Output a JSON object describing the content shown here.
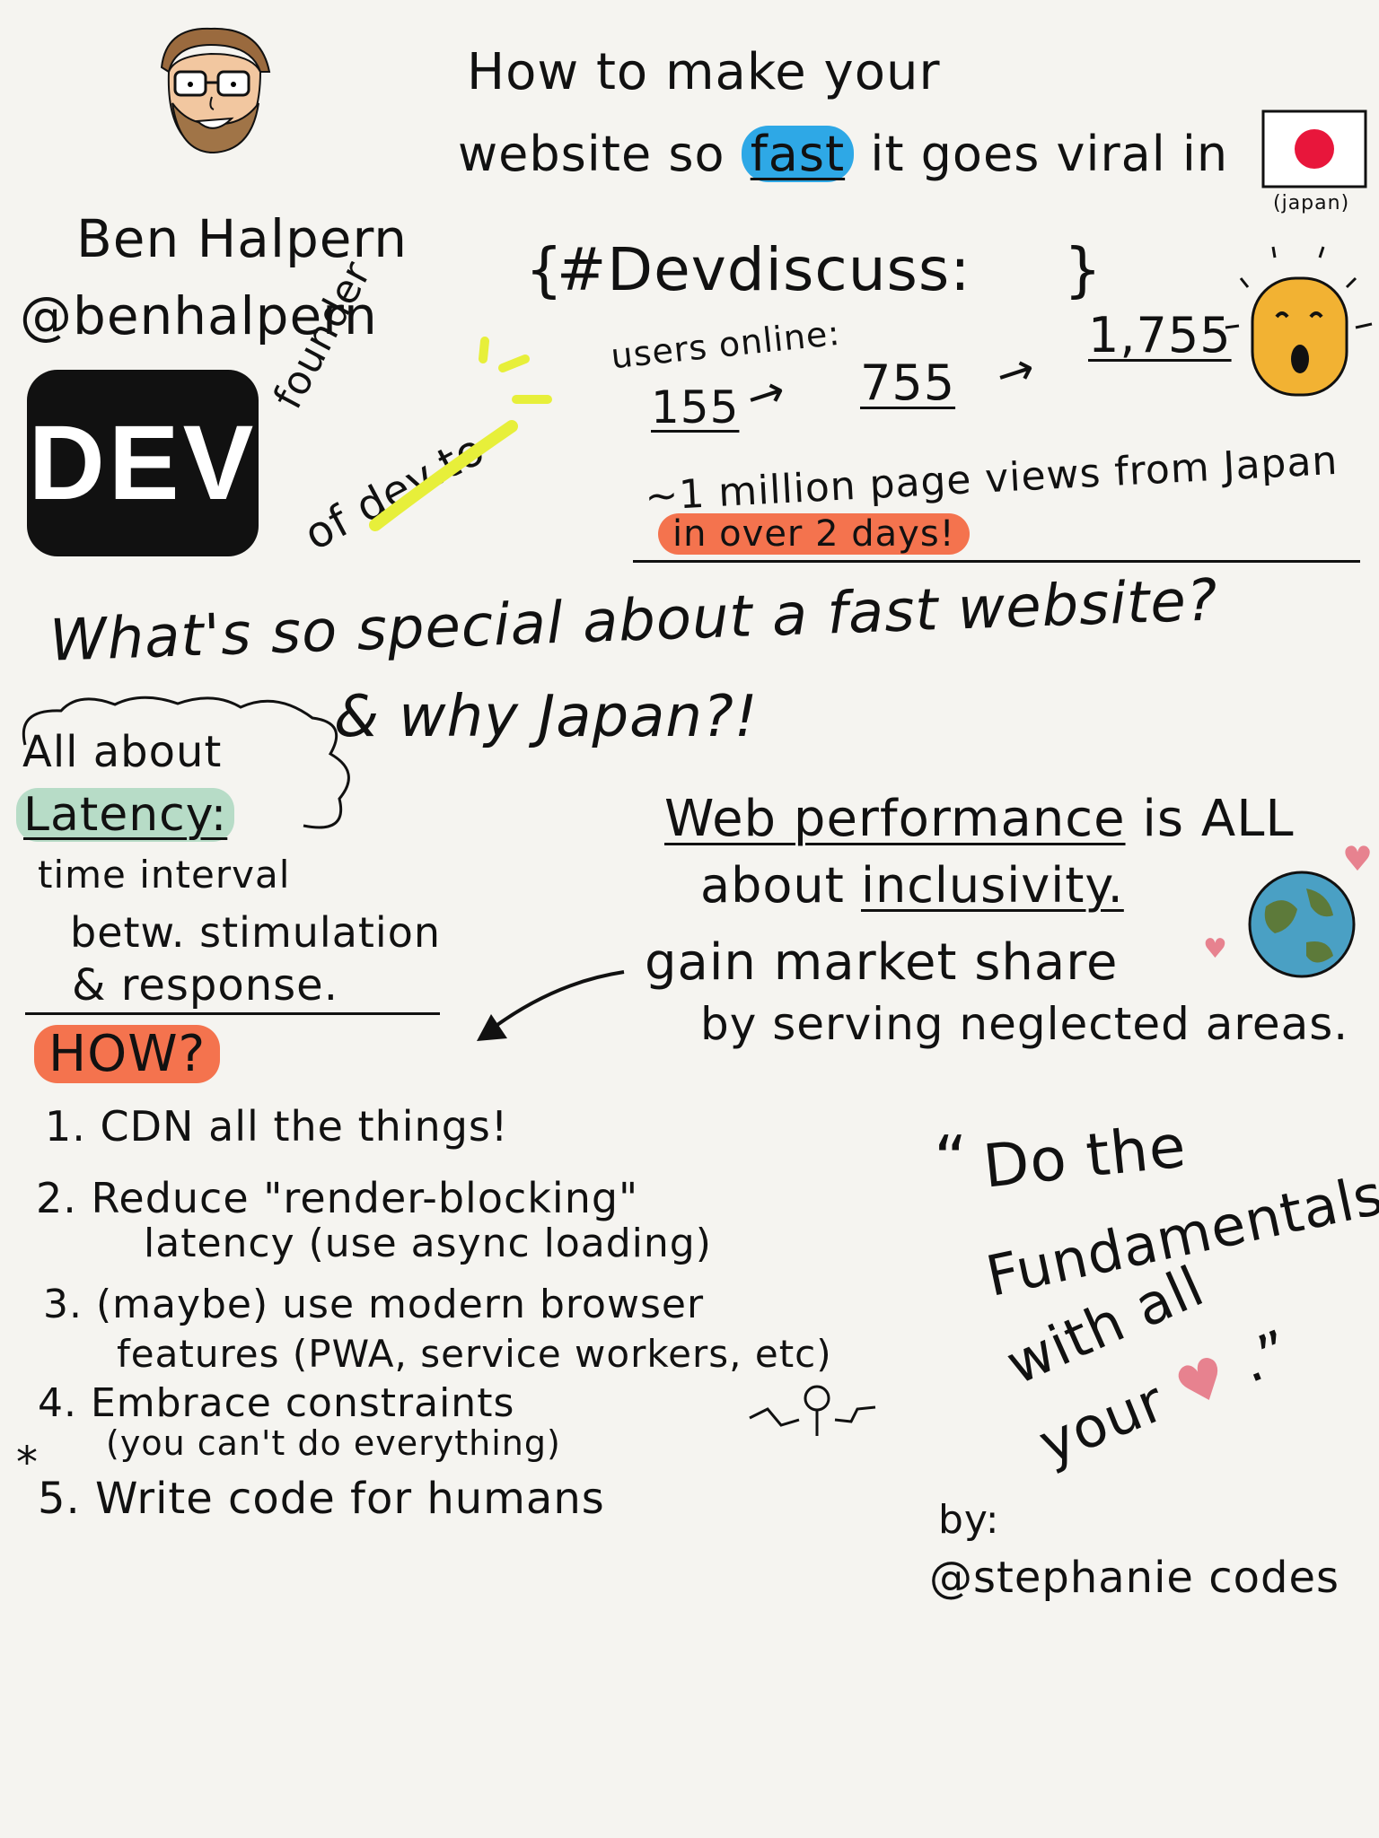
{
  "title": {
    "line1": "How to make your",
    "line2_pre": "website so",
    "line2_fast": "fast",
    "line2_post": "it goes viral in",
    "flag_caption": "(japan)"
  },
  "speaker": {
    "name": "Ben Halpern",
    "handle": "@benhalpern",
    "logo_text": "DEV",
    "role_line1": "founder",
    "role_line2": "of dev.to"
  },
  "discuss": {
    "tag": "#Devdiscuss:",
    "users_label": "users online:",
    "counts": [
      "155",
      "755",
      "1,755"
    ],
    "arrow": "→",
    "views": "~1 million page views from Japan",
    "timeframe": "in over 2 days!"
  },
  "question": {
    "line1": "What's so special about a fast website?",
    "line2": "& why Japan?!"
  },
  "latency": {
    "cloud_line1": "All about",
    "cloud_line2": "Latency:",
    "def1": "time interval",
    "def2": "betw. stimulation",
    "def3": "& response."
  },
  "perf": {
    "line1_a": "Web performance",
    "line1_b": "is ALL",
    "line2_a": "about",
    "line2_b": "inclusivity.",
    "line3": "gain market share",
    "line4": "by serving neglected areas."
  },
  "how": {
    "heading": "HOW?",
    "items": [
      "1. CDN all the things!",
      "2. Reduce \"render-blocking\"",
      "latency (use async loading)",
      "3. (maybe) use modern browser",
      "features (PWA, service workers, etc)",
      "4. Embrace constraints",
      "(you can't do everything)",
      "5. Write code for humans"
    ],
    "star": "*"
  },
  "quote": {
    "open": "“",
    "line1": "Do the",
    "line2": "Fundamentals",
    "line3": "with all",
    "line4": "your",
    "heart": "♥",
    "close": ".”"
  },
  "credit": {
    "by": "by:",
    "author": "@stephanie codes"
  },
  "colors": {
    "blue": "#2ea8e6",
    "orange": "#f4734e",
    "mint": "#b7dcc7",
    "yellow": "#e7ef3a",
    "face_yellow": "#f2b233",
    "japan_red": "#e8163b",
    "pink": "#e7828f",
    "earth_blue": "#4aa0c4",
    "earth_green": "#5d7a3a"
  },
  "icons": [
    "ben-face-icon",
    "japan-flag-icon",
    "surprised-face-icon",
    "earth-icon",
    "heart-icon",
    "stick-figure-icon",
    "arrow-icon"
  ]
}
